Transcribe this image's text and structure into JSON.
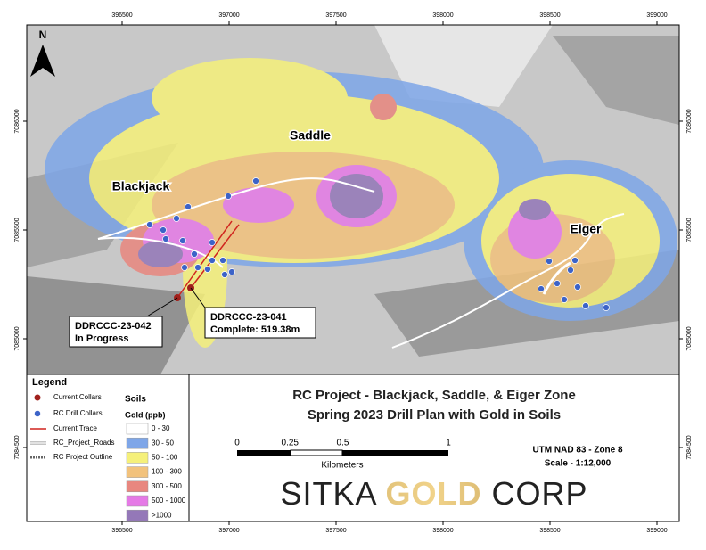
{
  "map": {
    "north_arrow": "N",
    "eastings": [
      396500,
      397000,
      397500,
      398000,
      398500,
      399000
    ],
    "northings": [
      7086000,
      7085500,
      7085000,
      7084500
    ],
    "zone_labels": [
      "Blackjack",
      "Saddle",
      "Eiger"
    ],
    "callouts": [
      {
        "name": "DDRCCC-23-042",
        "status": "In Progress"
      },
      {
        "name": "DDRCCC-23-041",
        "status": "Complete: 519.38m"
      }
    ]
  },
  "legend": {
    "title": "Legend",
    "items": [
      "Current Collars",
      "RC Drill Collars",
      "Current Trace",
      "RC_Project_Roads",
      "RC Project Outline"
    ],
    "soils_title": "Soils",
    "soils_unit": "Gold (ppb)",
    "classes": [
      {
        "label": "0 - 30",
        "color": "#ffffff"
      },
      {
        "label": "30 - 50",
        "color": "#7ea6e8"
      },
      {
        "label": "50 - 100",
        "color": "#f5f07a"
      },
      {
        "label": "100 - 300",
        "color": "#f2c27c"
      },
      {
        "label": "300 - 500",
        "color": "#e8877f"
      },
      {
        "label": "500 - 1000",
        "color": "#e57ae6"
      },
      {
        "label": ">1000",
        "color": "#9478b8"
      }
    ]
  },
  "title": {
    "lines": [
      "RC Project - Blackjack, Saddle, & Eiger Zone",
      "Spring 2023 Drill Plan with Gold in Soils"
    ]
  },
  "scale_bar": {
    "ticks": [
      0,
      0.25,
      0.5,
      1
    ],
    "unit": "Kilometers"
  },
  "projection": "UTM NAD 83 - Zone 8",
  "scale": "Scale - 1:12,000",
  "logo": [
    "SITKA",
    "GOLD",
    "CORP"
  ]
}
